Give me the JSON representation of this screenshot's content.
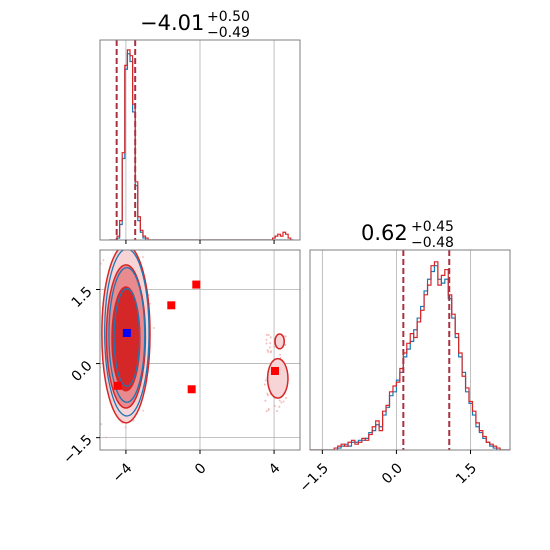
{
  "colors": {
    "red": "#d62728",
    "blue": "#1f77b4",
    "grid": "#b0b0b0",
    "marker_blue": "#0000ff",
    "marker_red": "#ff0000",
    "quantile": "#a83240"
  },
  "chart_data": [
    {
      "type": "histogram",
      "panel": "x-marginal",
      "title": {
        "value": "−4.01",
        "sup": "+0.50",
        "sub": "−0.49"
      },
      "xlim": [
        -5.4,
        5.4
      ],
      "quantile_lines": [
        -4.5,
        -3.5
      ],
      "grid_x": [
        -4,
        0,
        4
      ],
      "series": [
        {
          "color": "red",
          "x_start": -4.9,
          "bin_width": 0.14,
          "values": [
            0,
            0,
            0,
            0.02,
            0.1,
            0.45,
            0.9,
            0.98,
            0.95,
            0.7,
            0.3,
            0.12,
            0.05,
            0.02,
            0.01,
            0,
            0,
            0,
            0,
            0,
            0,
            0,
            0,
            0,
            0,
            0,
            0,
            0,
            0,
            0,
            0,
            0,
            0,
            0,
            0,
            0,
            0,
            0,
            0,
            0,
            0,
            0,
            0,
            0,
            0,
            0,
            0,
            0,
            0,
            0,
            0,
            0,
            0,
            0,
            0,
            0,
            0,
            0,
            0,
            0,
            0,
            0,
            0,
            0.01,
            0.02,
            0.03,
            0.02,
            0.04,
            0.03,
            0.01,
            0
          ]
        },
        {
          "color": "blue",
          "x_start": -4.9,
          "bin_width": 0.14,
          "values": [
            0,
            0,
            0,
            0.01,
            0.08,
            0.42,
            0.88,
            0.96,
            0.92,
            0.66,
            0.28,
            0.1,
            0.04,
            0.01,
            0,
            0,
            0,
            0,
            0,
            0,
            0,
            0,
            0,
            0,
            0,
            0,
            0,
            0,
            0,
            0,
            0,
            0,
            0,
            0,
            0,
            0,
            0,
            0,
            0,
            0,
            0,
            0,
            0,
            0,
            0,
            0,
            0,
            0,
            0,
            0,
            0,
            0,
            0,
            0,
            0,
            0,
            0,
            0,
            0,
            0,
            0,
            0,
            0,
            0,
            0,
            0,
            0,
            0,
            0,
            0,
            0
          ]
        }
      ]
    },
    {
      "type": "contour",
      "panel": "joint",
      "xlim": [
        -5.4,
        5.4
      ],
      "ylim": [
        -1.75,
        2.3
      ],
      "x_ticks": [
        "−4",
        "0",
        "4"
      ],
      "y_ticks": [
        "−1.5",
        "0.0",
        "1.5"
      ],
      "x_tick_values": [
        -4,
        0,
        4
      ],
      "y_tick_values": [
        -1.5,
        0.0,
        1.5
      ],
      "contour_levels": [
        {
          "cx": -4.0,
          "cy": 0.6,
          "rx": 1.3,
          "ry": 1.8
        },
        {
          "cx": -4.0,
          "cy": 0.55,
          "rx": 1.05,
          "ry": 1.45
        },
        {
          "cx": -4.0,
          "cy": 0.5,
          "rx": 0.75,
          "ry": 1.05
        }
      ],
      "small_contours": [
        {
          "cx": 4.2,
          "cy": -0.3,
          "rx": 0.55,
          "ry": 0.4
        },
        {
          "cx": 4.3,
          "cy": 0.45,
          "rx": 0.25,
          "ry": 0.15
        }
      ],
      "blue_marker": {
        "x": -3.95,
        "y": 0.62
      },
      "red_markers": [
        {
          "x": -0.2,
          "y": 1.6
        },
        {
          "x": -1.55,
          "y": 1.18
        },
        {
          "x": -4.45,
          "y": -0.45
        },
        {
          "x": -0.45,
          "y": -0.52
        },
        {
          "x": 4.05,
          "y": -0.15
        }
      ]
    },
    {
      "type": "histogram",
      "panel": "y-marginal",
      "title": {
        "value": "0.62",
        "sup": "+0.45",
        "sub": "−0.48"
      },
      "xlim": [
        -1.75,
        2.3
      ],
      "x_ticks": [
        "−1.5",
        "0.0",
        "1.5"
      ],
      "x_tick_values": [
        -1.5,
        0.0,
        1.5
      ],
      "quantile_lines": [
        0.14,
        1.07
      ],
      "series": [
        {
          "color": "red",
          "x_start": -1.75,
          "bin_width": 0.07,
          "values": [
            0,
            0,
            0,
            0,
            0,
            0,
            0,
            0.01,
            0.02,
            0.03,
            0.02,
            0.04,
            0.05,
            0.03,
            0.04,
            0.06,
            0.05,
            0.08,
            0.12,
            0.15,
            0.1,
            0.2,
            0.23,
            0.3,
            0.33,
            0.35,
            0.42,
            0.5,
            0.55,
            0.6,
            0.58,
            0.66,
            0.72,
            0.8,
            0.85,
            0.95,
            0.97,
            0.85,
            0.9,
            0.93,
            0.8,
            0.7,
            0.6,
            0.5,
            0.38,
            0.32,
            0.25,
            0.2,
            0.14,
            0.1,
            0.07,
            0.04,
            0.03,
            0.02,
            0.01,
            0,
            0,
            0
          ]
        },
        {
          "color": "blue",
          "x_start": -1.75,
          "bin_width": 0.07,
          "values": [
            0,
            0,
            0,
            0,
            0,
            0,
            0,
            0,
            0.01,
            0.02,
            0.03,
            0.02,
            0.04,
            0.04,
            0.05,
            0.05,
            0.06,
            0.09,
            0.1,
            0.13,
            0.12,
            0.18,
            0.22,
            0.28,
            0.3,
            0.36,
            0.4,
            0.48,
            0.52,
            0.56,
            0.62,
            0.68,
            0.74,
            0.82,
            0.88,
            0.92,
            0.95,
            0.88,
            0.86,
            0.88,
            0.78,
            0.68,
            0.58,
            0.48,
            0.4,
            0.3,
            0.24,
            0.18,
            0.12,
            0.09,
            0.06,
            0.04,
            0.02,
            0.01,
            0,
            0,
            0,
            0
          ]
        }
      ]
    }
  ]
}
